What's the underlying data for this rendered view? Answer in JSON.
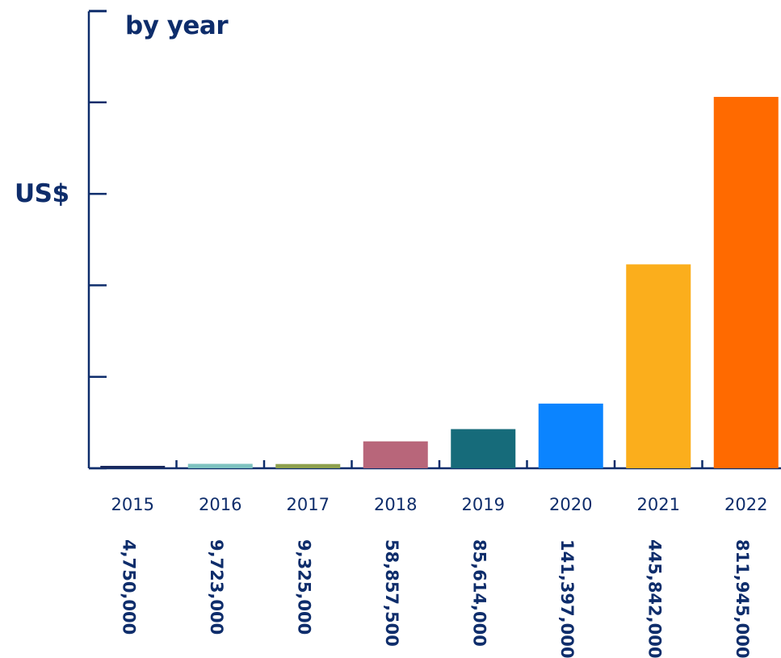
{
  "chart_data": {
    "type": "bar",
    "title": "by year",
    "ylabel": "US$",
    "xlabel": "",
    "categories": [
      "2015",
      "2016",
      "2017",
      "2018",
      "2019",
      "2020",
      "2021",
      "2022"
    ],
    "values": [
      4750000,
      9723000,
      9325000,
      58857500,
      85614000,
      141397000,
      445842000,
      811945000
    ],
    "value_labels": [
      "4,750,000",
      "9,723,000",
      "9,325,000",
      "58,857,500",
      "85,614,000",
      "141,397,000",
      "445,842,000",
      "811,945,000"
    ],
    "colors": [
      "#1a2a5e",
      "#7fc3c0",
      "#8fa14e",
      "#b8667a",
      "#166b7a",
      "#0b84ff",
      "#fbae1c",
      "#ff6a00"
    ],
    "axis_color": "#0e2d6b",
    "text_color": "#0e2d6b",
    "ylim": [
      0,
      1000000000
    ],
    "grid": false,
    "legend": false
  }
}
